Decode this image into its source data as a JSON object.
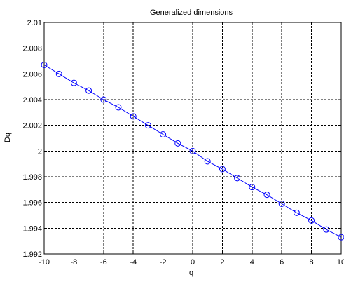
{
  "chart_data": {
    "type": "line",
    "title": "Generalized dimensions",
    "xlabel": "q",
    "ylabel": "Dq",
    "xlim": [
      -10,
      10
    ],
    "ylim": [
      1.992,
      2.01
    ],
    "grid": true,
    "grid_style": "dashed",
    "legend": "none",
    "x_ticks": [
      -10,
      -8,
      -6,
      -4,
      -2,
      0,
      2,
      4,
      6,
      8,
      10
    ],
    "x_tick_labels": [
      "-10",
      "-8",
      "-6",
      "-4",
      "-2",
      "0",
      "2",
      "4",
      "6",
      "8",
      "10"
    ],
    "y_ticks": [
      1.992,
      1.994,
      1.996,
      1.998,
      2.0,
      2.002,
      2.004,
      2.006,
      2.008,
      2.01
    ],
    "y_tick_labels": [
      "1.992",
      "1.994",
      "1.996",
      "1.998",
      "2",
      "2.002",
      "2.004",
      "2.006",
      "2.008",
      "2.01"
    ],
    "series": [
      {
        "marker": "circle",
        "color": "#0000ff",
        "x": [
          -10,
          -9,
          -8,
          -7,
          -6,
          -5,
          -4,
          -3,
          -2,
          -1,
          0,
          1,
          2,
          3,
          4,
          5,
          6,
          7,
          8,
          9,
          10
        ],
        "y": [
          2.0067,
          2.006,
          2.0053,
          2.0047,
          2.004,
          2.0034,
          2.0027,
          2.002,
          2.0013,
          2.0006,
          2.0,
          1.9992,
          1.9986,
          1.9979,
          1.9972,
          1.9966,
          1.9959,
          1.9952,
          1.9946,
          1.9939,
          1.9933
        ]
      }
    ]
  }
}
